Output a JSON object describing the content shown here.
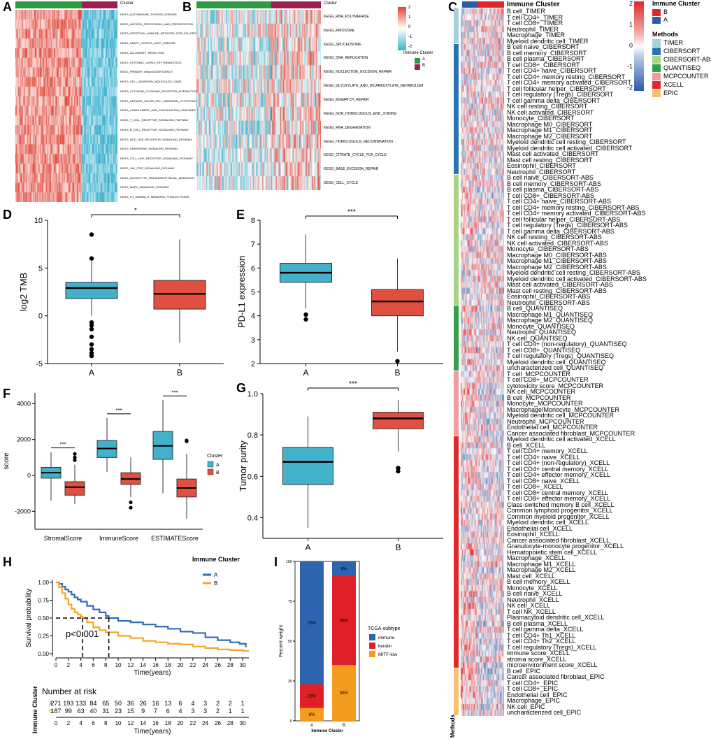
{
  "panel_letters": [
    "A",
    "B",
    "C",
    "D",
    "E",
    "F",
    "G",
    "H",
    "I"
  ],
  "colors": {
    "A": "#43b1c9",
    "B": "#df5040",
    "cl_A": "#2e9a44",
    "cl_B": "#9a2050",
    "hm_hi": "#e04335",
    "hm_lo": "#3fb2cf",
    "km_A": "#2f6ab8",
    "km_B": "#f5a623",
    "immune": "#2e63ad",
    "keratin": "#e11f28",
    "mitf": "#f39c1e"
  },
  "panelA": {
    "header": "Cluster",
    "rows": [
      "KEGG_AUTOIMMUNE_THYROID_DISEASE",
      "KEGG_ANTIGEN_PROCESSING_AND_PRESENTATION",
      "KEGG_INTESTINAL_IMMUNE_NETWORK_FOR_IGA_PRODUCTION",
      "KEGG_GRAFT_VERSUS_HOST_DISEASE",
      "KEGG_ALLOGRAFT_REJECTION",
      "KEGG_SYSTEMIC_LUPUS_ERYTHEMATOSUS",
      "KEGG_PRIMARY_IMMUNODEFICIENCY",
      "KEGG_CELL_ADHESION_MOLECULES_CAMS",
      "KEGG_CYTOKINE_CYTOKINE_RECEPTOR_INTERACTION",
      "KEGG_NATURAL_KILLER_CELL_MEDIATED_CYTOTOXICITY",
      "KEGG_COMPLEMENT_AND_COAGULATION_CASCADES",
      "KEGG_T_CELL_RECEPTOR_SIGNALING_PATHWAY",
      "KEGG_B_CELL_RECEPTOR_SIGNALING_PATHWAY",
      "KEGG_NOD_LIKE_RECEPTOR_SIGNALING_PATHWAY",
      "KEGG_CHEMOKINE_SIGNALING_PATHWAY",
      "KEGG_TOLL_LIKE_RECEPTOR_SIGNALING_PATHWAY",
      "KEGG_JAK_STAT_SIGNALING_PATHWAY",
      "KEGG_LEUKOCYTE_TRANSENDOTHELIAL_MIGRATION",
      "KEGG_MAPK_SIGNALING_PATHWAY",
      "KEGG_FC_GAMMA_R_MEDIATED_PHAGOCYTOSIS"
    ]
  },
  "panelB": {
    "header": "Cluster",
    "rows": [
      "KEGG_RNA_POLYMERASE",
      "KEGG_RIBOSOME",
      "KEGG_SPLICEOSOME",
      "KEGG_DNA_REPLICATION",
      "KEGG_NUCLEOTIDE_EXCISION_REPAIR",
      "KEGG_GLYOXYLATE_AND_DICARBOXYLATE_METABOLISM",
      "KEGG_MISMATCH_REPAIR",
      "KEGG_NON_HOMOLOGOUS_END_JOINING",
      "KEGG_RNA_DEGRADATION",
      "KEGG_HOMOLOGOUS_RECOMBINATION",
      "KEGG_CITRATE_CYCLE_TCA_CYCLE",
      "KEGG_BASE_EXCISION_REPAIR",
      "KEGG_CELL_CYCLE"
    ],
    "scale_ticks": [
      "2",
      "1",
      "0",
      "-1",
      "-2"
    ],
    "legend_title": "Immune Cluster",
    "legend_items": [
      "A",
      "B"
    ]
  },
  "panelC": {
    "scale_ticks": [
      "2",
      "1",
      "0",
      "-1",
      "-2"
    ],
    "cluster_legend_title": "Immune Cluster",
    "cluster_items": [
      "B",
      "A"
    ],
    "methods_title": "Methods",
    "methods": [
      {
        "name": "TIMER",
        "color": "#a6cfe0"
      },
      {
        "name": "CIBERSORT",
        "color": "#2a74b4"
      },
      {
        "name": "CIBERSORT-ABS",
        "color": "#a8d584"
      },
      {
        "name": "QUANTISEQ",
        "color": "#35a048"
      },
      {
        "name": "MCPCOUNTER",
        "color": "#f29b9d"
      },
      {
        "name": "XCELL",
        "color": "#e0272a"
      },
      {
        "name": "EPIC",
        "color": "#f6c072"
      }
    ],
    "side_label": "Methods",
    "header": "Immune Cluster",
    "groups": [
      {
        "method": "TIMER",
        "rows": [
          "B cell_TIMER",
          "T cell CD4+_TIMER",
          "T cell CD8+_TIMER",
          "Neutrophil_TIMER",
          "Macrophage_TIMER",
          "Myeloid dendritic cell_TIMER"
        ]
      },
      {
        "method": "CIBERSORT",
        "rows": [
          "B cell naive_CIBERSORT",
          "B cell memory_CIBERSORT",
          "B cell plasma_CIBERSORT",
          "T cell CD8+_CIBERSORT",
          "T cell CD4+ naive_CIBERSORT",
          "T cell CD4+ memory resting_CIBERSORT",
          "T cell CD4+ memory activated_CIBERSORT",
          "T cell follicular helper_CIBERSORT",
          "T cell regulatory (Tregs)_CIBERSORT",
          "T cell gamma delta_CIBERSORT",
          "NK cell resting_CIBERSORT",
          "NK cell activated_CIBERSORT",
          "Monocyte_CIBERSORT",
          "Macrophage M0_CIBERSORT",
          "Macrophage M1_CIBERSORT",
          "Macrophage M2_CIBERSORT",
          "Myeloid dendritic cell resting_CIBERSORT",
          "Myeloid dendritic cell activated_CIBERSORT",
          "Mast cell activated_CIBERSORT",
          "Mast cell resting_CIBERSORT",
          "Eosinophil_CIBERSORT",
          "Neutrophil_CIBERSORT"
        ]
      },
      {
        "method": "CIBERSORT-ABS",
        "rows": [
          "B cell naive_CIBERSORT-ABS",
          "B cell memory_CIBERSORT-ABS",
          "B cell plasma_CIBERSORT-ABS",
          "T cell CD8+_CIBERSORT-ABS",
          "T cell CD4+ naive_CIBERSORT-ABS",
          "T cell CD4+ memory resting_CIBERSORT-ABS",
          "T cell CD4+ memory activated_CIBERSORT-ABS",
          "T cell follicular helper_CIBERSORT-ABS",
          "T cell regulatory (Tregs)_CIBERSORT-ABS",
          "T cell gamma delta_CIBERSORT-ABS",
          "NK cell resting_CIBERSORT-ABS",
          "NK cell activated_CIBERSORT-ABS",
          "Monocyte_CIBERSORT-ABS",
          "Macrophage M0_CIBERSORT-ABS",
          "Macrophage M1_CIBERSORT-ABS",
          "Macrophage M2_CIBERSORT-ABS",
          "Myeloid dendritic cell resting_CIBERSORT-ABS",
          "Myeloid dendritic cell activated_CIBERSORT-ABS",
          "Mast cell activated_CIBERSORT-ABS",
          "Mast cell resting_CIBERSORT-ABS",
          "Eosinophil_CIBERSORT-ABS",
          "Neutrophil_CIBERSORT-ABS"
        ]
      },
      {
        "method": "QUANTISEQ",
        "rows": [
          "B cell_QUANTISEQ",
          "Macrophage M1_QUANTISEQ",
          "Macrophage M2_QUANTISEQ",
          "Monocyte_QUANTISEQ",
          "Neutrophil_QUANTISEQ",
          "NK cell_QUANTISEQ",
          "T cell CD4+ (non-regulatory)_QUANTISEQ",
          "T cell CD8+_QUANTISEQ",
          "T cell regulatory (Tregs)_QUANTISEQ",
          "Myeloid dendritic cell_QUANTISEQ",
          "uncharacterized cell_QUANTISEQ"
        ]
      },
      {
        "method": "MCPCOUNTER",
        "rows": [
          "T cell_MCPCOUNTER",
          "T cell CD8+_MCPCOUNTER",
          "cytotoxicity score_MCPCOUNTER",
          "NK cell_MCPCOUNTER",
          "B cell_MCPCOUNTER",
          "Monocyte_MCPCOUNTER",
          "Macrophage/Monocyte_MCPCOUNTER",
          "Myeloid dendritic cell_MCPCOUNTER",
          "Neutrophil_MCPCOUNTER",
          "Endothelial cell_MCPCOUNTER",
          "Cancer associated fibroblast_MCPCOUNTER"
        ]
      },
      {
        "method": "XCELL",
        "rows": [
          "Myeloid dendritic cell activated_XCELL",
          "B cell_XCELL",
          "T cell CD4+ memory_XCELL",
          "T cell CD4+ naive_XCELL",
          "T cell CD4+ (non-regulatory)_XCELL",
          "T cell CD4+ central memory_XCELL",
          "T cell CD4+ effector memory_XCELL",
          "T cell CD8+ naive_XCELL",
          "T cell CD8+_XCELL",
          "T cell CD8+ central memory_XCELL",
          "T cell CD8+ effector memory_XCELL",
          "Class-switched memory B cell_XCELL",
          "Common lymphoid progenitor_XCELL",
          "Common myeloid progenitor_XCELL",
          "Myeloid dendritic cell_XCELL",
          "Endothelial cell_XCELL",
          "Eosinophil_XCELL",
          "Cancer associated fibroblast_XCELL",
          "Granulocyte-monocyte progenitor_XCELL",
          "Hematopoietic stem cell_XCELL",
          "Macrophage_XCELL",
          "Macrophage M1_XCELL",
          "Macrophage M2_XCELL",
          "Mast cell_XCELL",
          "B cell memory_XCELL",
          "Monocyte_XCELL",
          "B cell naive_XCELL",
          "Neutrophil_XCELL",
          "NK cell_XCELL",
          "T cell NK_XCELL",
          "Plasmacytoid dendritic cell_XCELL",
          "B cell plasma_XCELL",
          "T cell gamma delta_XCELL",
          "T cell CD4+ Th1_XCELL",
          "T cell CD4+ Th2_XCELL",
          "T cell regulatory (Tregs)_XCELL",
          "immune score_XCELL",
          "stroma score_XCELL",
          "microenvironment score_XCELL"
        ]
      },
      {
        "method": "EPIC",
        "rows": [
          "B cell_EPIC",
          "Cancer associated fibroblast_EPIC",
          "T cell CD4+_EPIC",
          "T cell CD8+_EPIC",
          "Endothelial cell_EPIC",
          "Macrophage_EPIC",
          "NK cell_EPIC",
          "uncharacterized cell_EPIC"
        ]
      }
    ]
  },
  "chart_data": [
    {
      "id": "D",
      "type": "boxplot",
      "ylabel": "log2 TMB",
      "categories": [
        "A",
        "B"
      ],
      "ylim": [
        -5,
        10
      ],
      "yticks": [
        "-5",
        "0",
        "5",
        "10"
      ],
      "boxes": [
        {
          "q1": 1.8,
          "median": 2.9,
          "q3": 3.5,
          "lo": 0.0,
          "hi": 5.7
        },
        {
          "q1": 0.7,
          "median": 2.3,
          "q3": 3.7,
          "lo": -2.8,
          "hi": 8.0
        }
      ],
      "outliers": [
        [
          6.0,
          8.5,
          -0.7,
          -1.0,
          -1.4,
          -2.2,
          -3.0,
          -3.5,
          -3.9,
          -4.2
        ],
        []
      ],
      "significance": "*"
    },
    {
      "id": "E",
      "type": "boxplot",
      "ylabel": "PD-L1 expression",
      "categories": [
        "A",
        "B"
      ],
      "ylim": [
        2,
        8
      ],
      "yticks": [
        "2",
        "3",
        "4",
        "5",
        "6",
        "7",
        "8"
      ],
      "boxes": [
        {
          "q1": 5.4,
          "median": 5.8,
          "q3": 6.2,
          "lo": 4.3,
          "hi": 7.4
        },
        {
          "q1": 4.0,
          "median": 4.6,
          "q3": 5.1,
          "lo": 2.5,
          "hi": 6.4
        }
      ],
      "outliers": [
        [
          4.05,
          3.85
        ],
        [
          2.1
        ]
      ],
      "significance": "***"
    },
    {
      "id": "F",
      "type": "grouped-boxplot",
      "ylabel": "score",
      "categories": [
        "StromalScore",
        "ImmuneScore",
        "ESTIMATEScore"
      ],
      "ylim": [
        -3000,
        4600
      ],
      "yticks": [
        "-2000",
        "0",
        "2000",
        "4000"
      ],
      "legend_title": "Cluster",
      "legend_items": [
        "A",
        "B"
      ],
      "series": [
        {
          "name": "A",
          "boxes": [
            {
              "q1": -150,
              "median": 150,
              "q3": 450,
              "lo": -1400,
              "hi": 1300
            },
            {
              "q1": 1000,
              "median": 1500,
              "q3": 1950,
              "lo": 200,
              "hi": 3200
            },
            {
              "q1": 900,
              "median": 1650,
              "q3": 2450,
              "lo": -1000,
              "hi": 4200
            }
          ]
        },
        {
          "name": "B",
          "boxes": [
            {
              "q1": -1100,
              "median": -650,
              "q3": -350,
              "lo": -1600,
              "hi": 600
            },
            {
              "q1": -500,
              "median": -200,
              "q3": 150,
              "lo": -1200,
              "hi": 1000
            },
            {
              "q1": -1200,
              "median": -700,
              "q3": -200,
              "lo": -2400,
              "hi": 1200
            }
          ]
        }
      ],
      "outliers": [
        [],
        [
          1200,
          1000,
          850
        ],
        [],
        [
          -1500,
          -1800
        ],
        [],
        [
          1950,
          1900
        ]
      ],
      "significance": [
        "***",
        "***",
        "***"
      ]
    },
    {
      "id": "G",
      "type": "boxplot",
      "ylabel": "Tumor purity",
      "categories": [
        "A",
        "B"
      ],
      "ylim": [
        0.3,
        1.0
      ],
      "yticks": [
        "0.4",
        "0.6",
        "0.8",
        "1.0"
      ],
      "boxes": [
        {
          "q1": 0.56,
          "median": 0.67,
          "q3": 0.74,
          "lo": 0.35,
          "hi": 0.89
        },
        {
          "q1": 0.83,
          "median": 0.88,
          "q3": 0.91,
          "lo": 0.72,
          "hi": 0.97
        }
      ],
      "outliers": [
        [],
        [
          0.64,
          0.625
        ]
      ],
      "significance": "***"
    },
    {
      "id": "H",
      "type": "line",
      "title": "",
      "ylabel": "Survival probability",
      "xlabel": "Time(years)",
      "xlim": [
        0,
        31
      ],
      "ylim": [
        0,
        1
      ],
      "xticks": [
        "0",
        "2",
        "4",
        "6",
        "8",
        "10",
        "12",
        "14",
        "16",
        "18",
        "20",
        "22",
        "24",
        "26",
        "28",
        "30"
      ],
      "yticks": [
        "0.00",
        "0.25",
        "0.50",
        "0.75",
        "1.00"
      ],
      "legend_title": "Immune Cluster",
      "legend_items": [
        "A",
        "B"
      ],
      "pvalue": "p<0.001",
      "median_survival": [
        8.5,
        4.3
      ],
      "series": [
        {
          "name": "A",
          "x": [
            0,
            0.5,
            1,
            1.5,
            2,
            2.5,
            3,
            3.5,
            4,
            5,
            6,
            7,
            8,
            8.5,
            10,
            12,
            14,
            16,
            18,
            20,
            22,
            24,
            26,
            28,
            29.5,
            30.5
          ],
          "y": [
            1,
            0.98,
            0.94,
            0.9,
            0.87,
            0.83,
            0.79,
            0.76,
            0.73,
            0.67,
            0.62,
            0.58,
            0.53,
            0.5,
            0.46,
            0.44,
            0.41,
            0.38,
            0.35,
            0.31,
            0.29,
            0.23,
            0.19,
            0.16,
            0.14,
            0.09
          ]
        },
        {
          "name": "B",
          "x": [
            0,
            0.5,
            1,
            1.5,
            2,
            2.5,
            3,
            3.5,
            4,
            4.3,
            5,
            6,
            7,
            8,
            10,
            12,
            14,
            16,
            18,
            20,
            22,
            24,
            26,
            28,
            30,
            31
          ],
          "y": [
            1,
            0.93,
            0.85,
            0.77,
            0.69,
            0.63,
            0.58,
            0.55,
            0.52,
            0.5,
            0.44,
            0.37,
            0.33,
            0.3,
            0.25,
            0.22,
            0.18,
            0.16,
            0.14,
            0.13,
            0.1,
            0.08,
            0.06,
            0.05,
            0.04,
            0.04
          ]
        }
      ]
    },
    {
      "id": "H-risk",
      "type": "table",
      "title": "Number at risk",
      "ylabel": "Immune Cluster",
      "xlabel": "Time(years)",
      "row_names": [
        "A",
        "B"
      ],
      "rows": [
        [
          "271",
          "193",
          "133",
          "84",
          "65",
          "50",
          "36",
          "26",
          "16",
          "13",
          "6",
          "4",
          "3",
          "2",
          "2",
          "1"
        ],
        [
          "187",
          "99",
          "63",
          "40",
          "31",
          "23",
          "15",
          "9",
          "7",
          "6",
          "4",
          "3",
          "3",
          "2",
          "1",
          "1"
        ]
      ],
      "xticks": [
        "0",
        "2",
        "4",
        "6",
        "8",
        "10",
        "12",
        "14",
        "16",
        "18",
        "20",
        "22",
        "24",
        "26",
        "28",
        "30"
      ]
    },
    {
      "id": "I",
      "type": "bar",
      "stacked": true,
      "ylabel": "Percent weight",
      "xlabel": "Immune Cluster",
      "categories": [
        "A",
        "B"
      ],
      "ylim": [
        0,
        100
      ],
      "yticks": [
        "0",
        "25",
        "50",
        "75",
        "100"
      ],
      "legend_title": "TCGA-subtype",
      "legend_items": [
        "immune",
        "keratin",
        "MITF-low"
      ],
      "series": [
        {
          "name": "MITF-low",
          "values": [
            8,
            35
          ],
          "labels": [
            "8%",
            "35%"
          ]
        },
        {
          "name": "keratin",
          "values": [
            15,
            56
          ],
          "labels": [
            "15%",
            "56%"
          ]
        },
        {
          "name": "immune",
          "values": [
            78,
            9
          ],
          "labels": [
            "78%",
            "9%"
          ]
        }
      ]
    }
  ]
}
